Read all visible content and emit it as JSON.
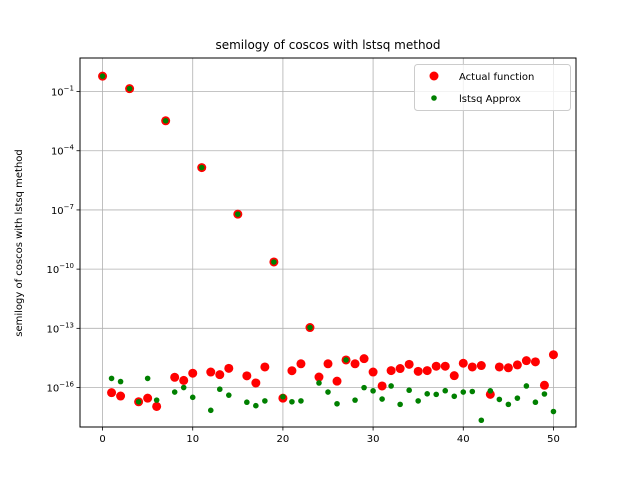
{
  "chart_data": {
    "type": "scatter",
    "title": "semilogy of coscos with lstsq method",
    "xlabel": "",
    "ylabel": "semilogy of coscos with lstsq method",
    "yscale": "log",
    "grid": true,
    "legend_position": "top-right",
    "xlim": [
      -2.5,
      52.5
    ],
    "ylim": [
      1e-18,
      5.0
    ],
    "x_ticks": [
      0,
      10,
      20,
      30,
      40,
      50
    ],
    "x_tick_labels": [
      "0",
      "10",
      "20",
      "30",
      "40",
      "50"
    ],
    "y_ticks": [
      1e-16,
      1e-13,
      1e-10,
      1e-07,
      0.0001,
      0.1
    ],
    "y_tick_labels": [
      "10",
      "10",
      "10",
      "10",
      "10",
      "10"
    ],
    "y_tick_exponents": [
      "−16",
      "−13",
      "−10",
      "−7",
      "−4",
      "−1"
    ],
    "series": [
      {
        "name": "Actual function",
        "color": "#ff0000",
        "marker": "circle-large",
        "x": [
          0,
          1,
          2,
          3,
          4,
          5,
          6,
          7,
          8,
          9,
          10,
          11,
          12,
          13,
          14,
          15,
          16,
          17,
          18,
          19,
          20,
          21,
          22,
          23,
          24,
          25,
          26,
          27,
          28,
          29,
          30,
          31,
          32,
          33,
          34,
          35,
          36,
          37,
          38,
          39,
          40,
          41,
          42,
          43,
          44,
          45,
          46,
          47,
          48,
          49,
          50
        ],
        "y": [
          0.6,
          5.5e-17,
          3.7e-17,
          0.14,
          1.9e-17,
          2.9e-17,
          1.1e-17,
          0.0033,
          3.3e-16,
          2.3e-16,
          5.3e-16,
          1.4e-05,
          6.1e-16,
          4.5e-16,
          9.4e-16,
          6.1e-08,
          3.9e-16,
          1.7e-16,
          1.1e-15,
          2.3e-10,
          2.9e-17,
          7.1e-16,
          1.6e-15,
          1.1e-13,
          3.4e-16,
          1.6e-15,
          2.1e-16,
          2.5e-15,
          1.6e-15,
          2.9e-15,
          6.1e-16,
          1.2e-16,
          7.2e-16,
          9.2e-16,
          1.5e-15,
          6.6e-16,
          7.2e-16,
          1.2e-15,
          1.2e-15,
          4e-16,
          1.7e-15,
          1.1e-15,
          1.3e-15,
          4.5e-17,
          1.1e-15,
          1e-15,
          1.4e-15,
          2.3e-15,
          2e-15,
          1.3e-16,
          4.6e-15
        ]
      },
      {
        "name": "lstsq Approx",
        "color": "#008000",
        "marker": "circle-small",
        "x": [
          0,
          1,
          2,
          3,
          4,
          5,
          6,
          7,
          8,
          9,
          10,
          11,
          12,
          13,
          14,
          15,
          16,
          17,
          18,
          19,
          20,
          21,
          22,
          23,
          24,
          25,
          26,
          27,
          28,
          29,
          30,
          31,
          32,
          33,
          34,
          35,
          36,
          37,
          38,
          39,
          40,
          41,
          42,
          43,
          44,
          45,
          46,
          47,
          48,
          49,
          50
        ],
        "y": [
          0.6,
          2.9e-16,
          2e-16,
          0.14,
          1.9e-17,
          2.9e-16,
          2.3e-17,
          0.0033,
          5.9e-17,
          1e-16,
          3.2e-17,
          1.4e-05,
          7e-18,
          8.2e-17,
          4.1e-17,
          6.1e-08,
          1.8e-17,
          1.2e-17,
          2.1e-17,
          2.3e-10,
          3.4e-17,
          1.9e-17,
          2.1e-17,
          1.1e-13,
          1.7e-16,
          5.9e-17,
          1.5e-17,
          2.5e-15,
          2.3e-17,
          9.9e-17,
          6.8e-17,
          2.6e-17,
          1.2e-16,
          1.4e-17,
          7.3e-17,
          2.1e-17,
          4.8e-17,
          4.5e-17,
          6.9e-17,
          3.6e-17,
          5.9e-17,
          6.3e-17,
          2.2e-18,
          6.8e-17,
          2.5e-17,
          1.4e-17,
          2.9e-17,
          1.2e-16,
          1.8e-17,
          4.7e-17,
          6.1e-18
        ]
      }
    ]
  }
}
